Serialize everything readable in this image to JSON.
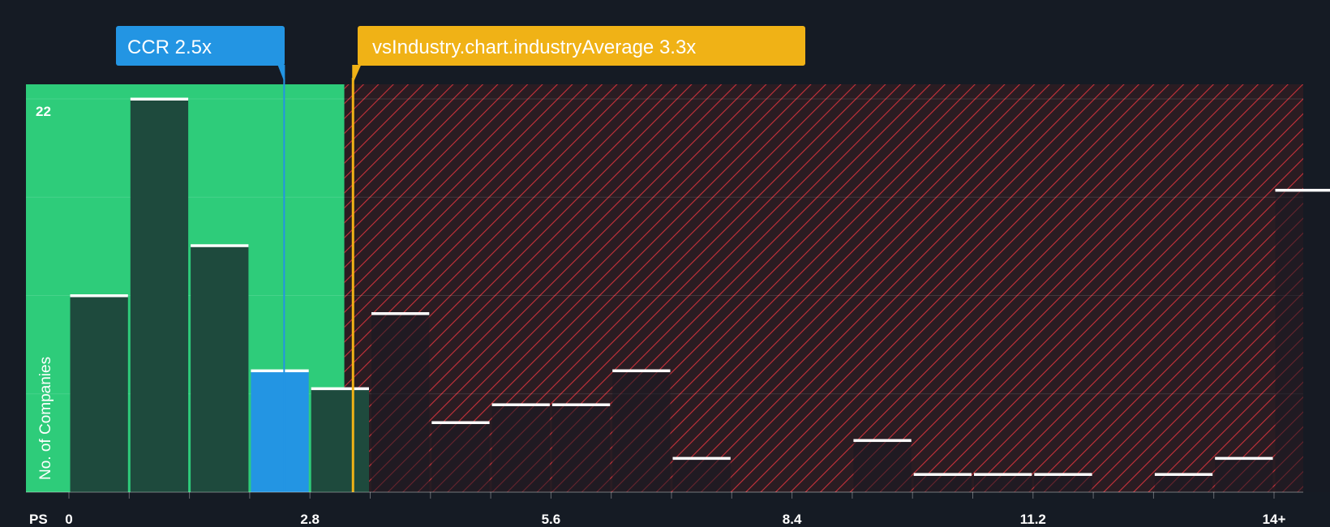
{
  "chart_data": {
    "type": "bar",
    "axis_prefix": "PS",
    "ylabel": "No. of Companies",
    "y_top_tick": "22",
    "ylim": [
      0,
      22
    ],
    "xlim": [
      0,
      14.4
    ],
    "x_ticks": [
      {
        "value": 0,
        "label": "0"
      },
      {
        "value": 2.8,
        "label": "2.8"
      },
      {
        "value": 5.6,
        "label": "5.6"
      },
      {
        "value": 8.4,
        "label": "8.4"
      },
      {
        "value": 11.2,
        "label": "11.2"
      },
      {
        "value": 14,
        "label": "14+"
      }
    ],
    "bin_width": 0.7,
    "bins": [
      {
        "start": 0.0,
        "value": 11
      },
      {
        "start": 0.7,
        "value": 22
      },
      {
        "start": 1.4,
        "value": 13.8
      },
      {
        "start": 2.1,
        "value": 6.8,
        "highlight": true
      },
      {
        "start": 2.8,
        "value": 5.8
      },
      {
        "start": 3.5,
        "value": 10
      },
      {
        "start": 4.2,
        "value": 3.9
      },
      {
        "start": 4.9,
        "value": 4.9
      },
      {
        "start": 5.6,
        "value": 4.9
      },
      {
        "start": 6.3,
        "value": 6.8
      },
      {
        "start": 7.0,
        "value": 1.9
      },
      {
        "start": 7.7,
        "value": 0
      },
      {
        "start": 8.4,
        "value": 0
      },
      {
        "start": 9.1,
        "value": 2.9
      },
      {
        "start": 9.8,
        "value": 1
      },
      {
        "start": 10.5,
        "value": 1
      },
      {
        "start": 11.2,
        "value": 1
      },
      {
        "start": 11.9,
        "value": 0
      },
      {
        "start": 12.6,
        "value": 1
      },
      {
        "start": 13.3,
        "value": 1.9
      },
      {
        "start": 14.0,
        "value": 16.9
      }
    ],
    "company": {
      "label": "CCR 2.5x",
      "value": 2.5
    },
    "industry": {
      "label": "vsIndustry.chart.industryAverage 3.3x",
      "value": 3.3
    },
    "fair_zone_end": 3.2
  },
  "colors": {
    "background": "#151b24",
    "fair_zone": "#2ecc7a",
    "bar": "#1e4a3d",
    "bar_top": "#ffffff",
    "company": "#2395e3",
    "industry": "#f0b216",
    "overvalued_hatch": "#c8323b"
  }
}
